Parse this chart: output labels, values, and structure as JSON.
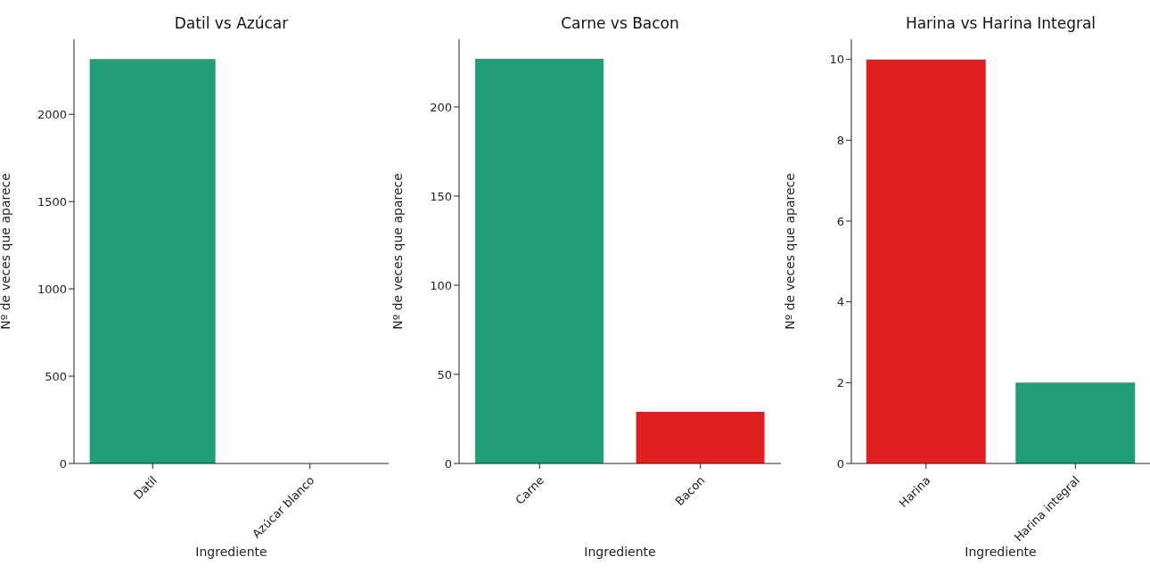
{
  "chart_data": [
    {
      "type": "bar",
      "title": "Datil vs Azúcar",
      "xlabel": "Ingrediente",
      "ylabel": "Nº de veces que aparece",
      "categories": [
        "Datil",
        "Azúcar blanco"
      ],
      "values": [
        2316,
        0
      ],
      "colors": [
        "#1f9e79",
        "#e02020"
      ],
      "ylim": [
        0,
        2430
      ],
      "yticks": [
        0,
        500,
        1000,
        1500,
        2000
      ],
      "grid": false
    },
    {
      "type": "bar",
      "title": "Carne vs Bacon",
      "xlabel": "Ingrediente",
      "ylabel": "Nº de veces que aparece",
      "categories": [
        "Carne",
        "Bacon"
      ],
      "values": [
        227,
        29
      ],
      "colors": [
        "#1f9e79",
        "#e02020"
      ],
      "ylim": [
        0,
        238
      ],
      "yticks": [
        0,
        50,
        100,
        150,
        200
      ],
      "grid": false
    },
    {
      "type": "bar",
      "title": "Harina vs Harina Integral",
      "xlabel": "Ingrediente",
      "ylabel": "Nº de veces que aparece",
      "categories": [
        "Harina",
        "Harina integral"
      ],
      "values": [
        10,
        2
      ],
      "colors": [
        "#e02020",
        "#1f9e79"
      ],
      "ylim": [
        0,
        10.5
      ],
      "yticks": [
        0,
        2,
        4,
        6,
        8,
        10
      ],
      "grid": false
    }
  ]
}
